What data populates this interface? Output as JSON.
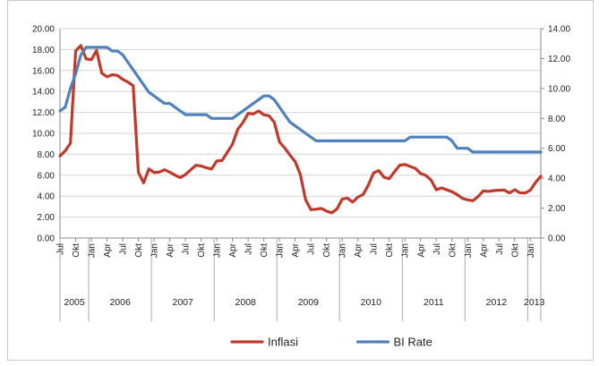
{
  "chart_data": {
    "type": "line",
    "title": "",
    "x": [
      "2005-07",
      "2005-08",
      "2005-09",
      "2005-10",
      "2005-11",
      "2005-12",
      "2006-01",
      "2006-02",
      "2006-03",
      "2006-04",
      "2006-05",
      "2006-06",
      "2006-07",
      "2006-08",
      "2006-09",
      "2006-10",
      "2006-11",
      "2006-12",
      "2007-01",
      "2007-02",
      "2007-03",
      "2007-04",
      "2007-05",
      "2007-06",
      "2007-07",
      "2007-08",
      "2007-09",
      "2007-10",
      "2007-11",
      "2007-12",
      "2008-01",
      "2008-02",
      "2008-03",
      "2008-04",
      "2008-05",
      "2008-06",
      "2008-07",
      "2008-08",
      "2008-09",
      "2008-10",
      "2008-11",
      "2008-12",
      "2009-01",
      "2009-02",
      "2009-03",
      "2009-04",
      "2009-05",
      "2009-06",
      "2009-07",
      "2009-08",
      "2009-09",
      "2009-10",
      "2009-11",
      "2009-12",
      "2010-01",
      "2010-02",
      "2010-03",
      "2010-04",
      "2010-05",
      "2010-06",
      "2010-07",
      "2010-08",
      "2010-09",
      "2010-10",
      "2010-11",
      "2010-12",
      "2011-01",
      "2011-02",
      "2011-03",
      "2011-04",
      "2011-05",
      "2011-06",
      "2011-07",
      "2011-08",
      "2011-09",
      "2011-10",
      "2011-11",
      "2011-12",
      "2012-01",
      "2012-02",
      "2012-03",
      "2012-04",
      "2012-05",
      "2012-06",
      "2012-07",
      "2012-08",
      "2012-09",
      "2012-10",
      "2012-11",
      "2012-12",
      "2013-01",
      "2013-02",
      "2013-03"
    ],
    "tick_labels": [
      "Jul",
      "Okt",
      "Jan",
      "Apr",
      "Jul",
      "Okt",
      "Jan",
      "Apr",
      "Jul",
      "Okt",
      "Jan",
      "Apr",
      "Jul",
      "Okt",
      "Jan",
      "Apr",
      "Jul",
      "Okt",
      "Jan",
      "Apr",
      "Jul",
      "Okt",
      "Jan",
      "Apr",
      "Jul",
      "Okt",
      "Jan",
      "Apr",
      "Jul",
      "Okt",
      "Jan"
    ],
    "year_labels": [
      "2005",
      "2006",
      "2007",
      "2008",
      "2009",
      "2010",
      "2011",
      "2012",
      "2013"
    ],
    "series": [
      {
        "name": "Inflasi",
        "axis": "left",
        "color": "#c0392b",
        "values": [
          7.84,
          8.33,
          9.06,
          17.89,
          18.38,
          17.11,
          17.03,
          17.92,
          15.74,
          15.4,
          15.6,
          15.53,
          15.15,
          14.9,
          14.55,
          6.29,
          5.27,
          6.6,
          6.26,
          6.3,
          6.52,
          6.29,
          6.01,
          5.77,
          6.06,
          6.51,
          6.95,
          6.88,
          6.71,
          6.59,
          7.36,
          7.4,
          8.17,
          8.96,
          10.38,
          11.03,
          11.9,
          11.85,
          12.14,
          11.77,
          11.68,
          11.06,
          9.17,
          8.6,
          7.92,
          7.31,
          6.04,
          3.65,
          2.71,
          2.75,
          2.83,
          2.57,
          2.41,
          2.78,
          3.72,
          3.81,
          3.43,
          3.91,
          4.16,
          5.05,
          6.22,
          6.44,
          5.8,
          5.67,
          6.33,
          6.96,
          7.02,
          6.84,
          6.65,
          6.16,
          5.98,
          5.54,
          4.61,
          4.79,
          4.61,
          4.42,
          4.15,
          3.79,
          3.65,
          3.56,
          3.97,
          4.5,
          4.45,
          4.53,
          4.56,
          4.58,
          4.31,
          4.61,
          4.32,
          4.3,
          4.57,
          5.31,
          5.9
        ]
      },
      {
        "name": "BI Rate",
        "axis": "right",
        "color": "#4f81bd",
        "values": [
          8.5,
          8.75,
          10.0,
          11.0,
          12.25,
          12.75,
          12.75,
          12.75,
          12.75,
          12.75,
          12.5,
          12.5,
          12.25,
          11.75,
          11.25,
          10.75,
          10.25,
          9.75,
          9.5,
          9.25,
          9.0,
          9.0,
          8.75,
          8.5,
          8.25,
          8.25,
          8.25,
          8.25,
          8.25,
          8.0,
          8.0,
          8.0,
          8.0,
          8.0,
          8.25,
          8.5,
          8.75,
          9.0,
          9.25,
          9.5,
          9.5,
          9.25,
          8.75,
          8.25,
          7.75,
          7.5,
          7.25,
          7.0,
          6.75,
          6.5,
          6.5,
          6.5,
          6.5,
          6.5,
          6.5,
          6.5,
          6.5,
          6.5,
          6.5,
          6.5,
          6.5,
          6.5,
          6.5,
          6.5,
          6.5,
          6.5,
          6.5,
          6.75,
          6.75,
          6.75,
          6.75,
          6.75,
          6.75,
          6.75,
          6.75,
          6.5,
          6.0,
          6.0,
          6.0,
          5.75,
          5.75,
          5.75,
          5.75,
          5.75,
          5.75,
          5.75,
          5.75,
          5.75,
          5.75,
          5.75,
          5.75,
          5.75,
          5.75
        ]
      }
    ],
    "y_left": {
      "min": 0,
      "max": 20,
      "ticks": [
        "0.00",
        "2.00",
        "4.00",
        "6.00",
        "8.00",
        "10.00",
        "12.00",
        "14.00",
        "16.00",
        "18.00",
        "20.00"
      ]
    },
    "y_right": {
      "min": 0,
      "max": 14,
      "ticks": [
        "0.00",
        "2.00",
        "4.00",
        "6.00",
        "8.00",
        "10.00",
        "12.00",
        "14.00"
      ]
    },
    "grid": true,
    "legend_position": "bottom"
  }
}
